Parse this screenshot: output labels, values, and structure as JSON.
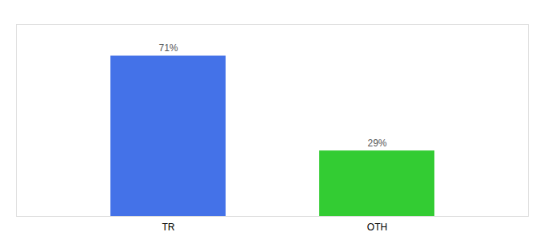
{
  "chart_data": {
    "type": "bar",
    "categories": [
      "TR",
      "OTH"
    ],
    "values": [
      71,
      29
    ],
    "value_labels": [
      "71%",
      "29%"
    ],
    "colors": [
      "#4472e8",
      "#33cc33"
    ],
    "ylim": [
      0,
      85
    ],
    "data_labels": true,
    "tick_labels": "x",
    "grid": false
  }
}
